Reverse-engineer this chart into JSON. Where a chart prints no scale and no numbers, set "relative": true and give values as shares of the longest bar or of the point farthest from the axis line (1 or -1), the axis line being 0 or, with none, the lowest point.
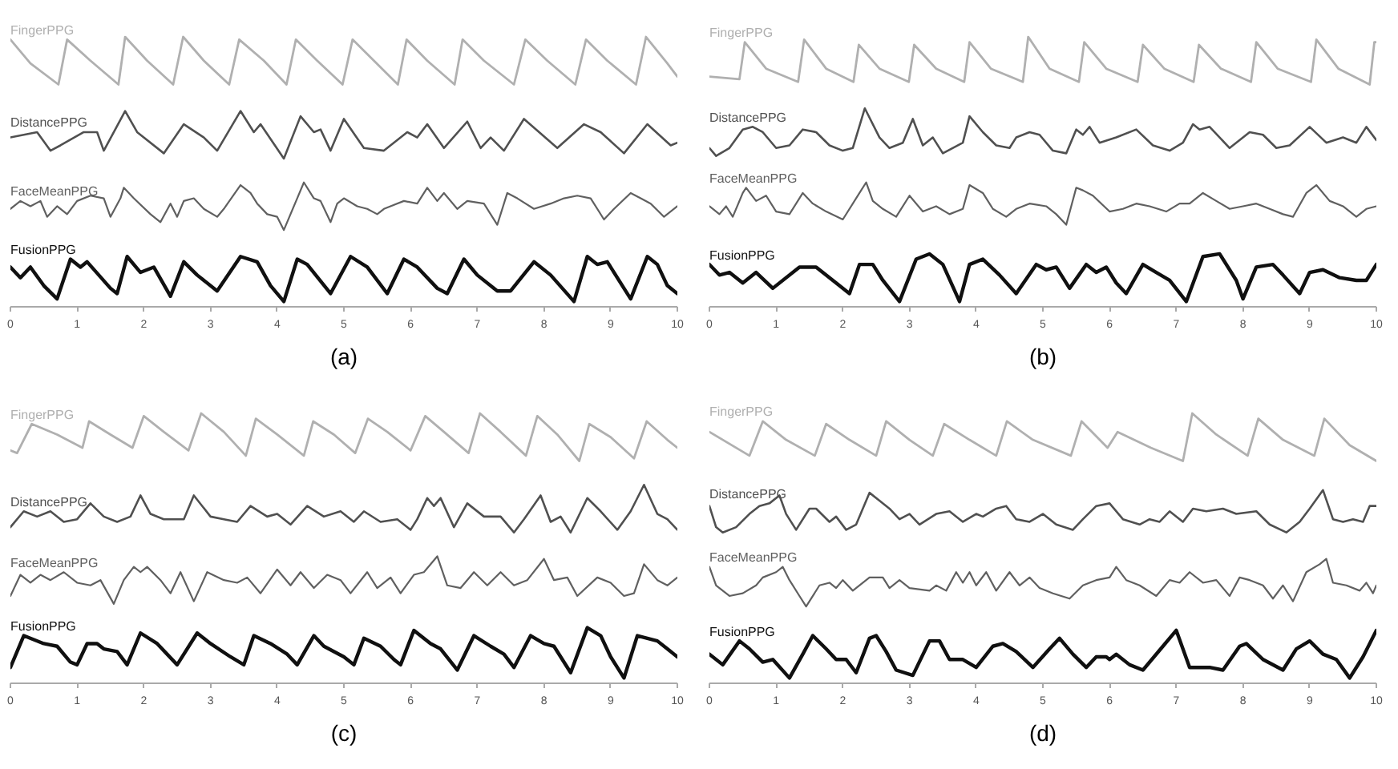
{
  "chart_data": [
    {
      "type": "line",
      "relative": true,
      "title": "(a)",
      "xlim": [
        0,
        10
      ],
      "xticks": [
        0,
        1,
        2,
        3,
        4,
        5,
        6,
        7,
        8,
        9,
        10
      ],
      "series": [
        {
          "name": "FingerPPG",
          "color": "#b0b0b0",
          "x": [
            0,
            0.3,
            0.72,
            0.85,
            1.2,
            1.62,
            1.72,
            2.05,
            2.44,
            2.59,
            2.9,
            3.28,
            3.43,
            3.8,
            4.14,
            4.28,
            4.6,
            4.98,
            5.13,
            5.45,
            5.81,
            5.94,
            6.25,
            6.66,
            6.78,
            7.1,
            7.55,
            7.72,
            8.05,
            8.47,
            8.63,
            8.95,
            9.38,
            9.53,
            9.85,
            10
          ],
          "values": [
            0.99,
            0.9,
            0.82,
            0.99,
            0.91,
            0.82,
            1.0,
            0.91,
            0.82,
            1.0,
            0.91,
            0.82,
            0.99,
            0.91,
            0.82,
            0.99,
            0.91,
            0.82,
            0.99,
            0.91,
            0.82,
            0.99,
            0.91,
            0.82,
            0.99,
            0.91,
            0.82,
            0.99,
            0.91,
            0.82,
            0.99,
            0.91,
            0.82,
            1.0,
            0.9,
            0.85
          ]
        },
        {
          "name": "DistancePPG",
          "color": "#505050",
          "x": [
            0,
            0.4,
            0.6,
            0.75,
            1.1,
            1.3,
            1.4,
            1.72,
            1.9,
            2.3,
            2.6,
            2.9,
            3.1,
            3.45,
            3.65,
            3.75,
            4.1,
            4.35,
            4.55,
            4.65,
            4.8,
            5.0,
            5.3,
            5.6,
            5.95,
            6.1,
            6.25,
            6.5,
            6.85,
            7.05,
            7.2,
            7.4,
            7.7,
            8.2,
            8.6,
            8.85,
            9.2,
            9.55,
            9.9,
            10
          ],
          "values": [
            0.62,
            0.64,
            0.57,
            0.59,
            0.64,
            0.64,
            0.57,
            0.72,
            0.64,
            0.56,
            0.67,
            0.62,
            0.57,
            0.72,
            0.64,
            0.67,
            0.54,
            0.7,
            0.64,
            0.65,
            0.57,
            0.69,
            0.58,
            0.57,
            0.64,
            0.62,
            0.67,
            0.58,
            0.68,
            0.58,
            0.62,
            0.57,
            0.69,
            0.58,
            0.67,
            0.64,
            0.56,
            0.67,
            0.59,
            0.6
          ]
        },
        {
          "name": "FaceMeanPPG",
          "color": "#606060",
          "x": [
            0,
            0.15,
            0.3,
            0.45,
            0.55,
            0.7,
            0.85,
            1.0,
            1.2,
            1.4,
            1.5,
            1.65,
            1.7,
            1.85,
            2.1,
            2.25,
            2.4,
            2.5,
            2.6,
            2.75,
            2.9,
            3.1,
            3.2,
            3.45,
            3.6,
            3.7,
            3.85,
            4.0,
            4.1,
            4.3,
            4.4,
            4.55,
            4.65,
            4.8,
            4.9,
            5.0,
            5.2,
            5.35,
            5.5,
            5.6,
            5.9,
            6.1,
            6.25,
            6.4,
            6.5,
            6.7,
            6.85,
            7.1,
            7.3,
            7.45,
            7.6,
            7.85,
            8.1,
            8.3,
            8.5,
            8.7,
            8.9,
            9.05,
            9.3,
            9.45,
            9.6,
            9.8,
            10
          ],
          "values": [
            0.35,
            0.38,
            0.36,
            0.38,
            0.32,
            0.36,
            0.33,
            0.38,
            0.4,
            0.39,
            0.32,
            0.39,
            0.43,
            0.39,
            0.33,
            0.3,
            0.37,
            0.32,
            0.38,
            0.39,
            0.35,
            0.32,
            0.35,
            0.44,
            0.41,
            0.37,
            0.33,
            0.32,
            0.27,
            0.39,
            0.45,
            0.39,
            0.38,
            0.3,
            0.37,
            0.39,
            0.36,
            0.35,
            0.33,
            0.35,
            0.38,
            0.37,
            0.43,
            0.38,
            0.41,
            0.35,
            0.38,
            0.37,
            0.29,
            0.41,
            0.39,
            0.35,
            0.37,
            0.39,
            0.4,
            0.39,
            0.31,
            0.35,
            0.41,
            0.39,
            0.37,
            0.32,
            0.36
          ]
        },
        {
          "name": "FusionPPG",
          "color": "#101010",
          "x": [
            0,
            0.15,
            0.3,
            0.5,
            0.7,
            0.9,
            1.05,
            1.15,
            1.5,
            1.6,
            1.75,
            1.95,
            2.15,
            2.4,
            2.6,
            2.8,
            3.1,
            3.45,
            3.7,
            3.9,
            4.1,
            4.3,
            4.45,
            4.8,
            5.1,
            5.35,
            5.65,
            5.9,
            6.1,
            6.4,
            6.55,
            6.8,
            7.0,
            7.3,
            7.5,
            7.85,
            8.1,
            8.45,
            8.65,
            8.8,
            8.95,
            9.3,
            9.55,
            9.7,
            9.85,
            10
          ],
          "values": [
            0.13,
            0.09,
            0.13,
            0.06,
            0.01,
            0.16,
            0.13,
            0.15,
            0.05,
            0.03,
            0.17,
            0.11,
            0.13,
            0.02,
            0.15,
            0.1,
            0.04,
            0.17,
            0.15,
            0.06,
            0,
            0.16,
            0.14,
            0.03,
            0.17,
            0.13,
            0.03,
            0.16,
            0.13,
            0.05,
            0.03,
            0.16,
            0.1,
            0.04,
            0.04,
            0.15,
            0.1,
            0,
            0.17,
            0.14,
            0.15,
            0.01,
            0.17,
            0.14,
            0.06,
            0.03
          ]
        }
      ]
    },
    {
      "type": "line",
      "relative": true,
      "title": "(b)",
      "xlim": [
        0,
        10
      ],
      "xticks": [
        0,
        1,
        2,
        3,
        4,
        5,
        6,
        7,
        8,
        9,
        10
      ],
      "series": [
        {
          "name": "FingerPPG",
          "color": "#b0b0b0",
          "x": [
            0,
            0.45,
            0.53,
            0.85,
            1.33,
            1.42,
            1.75,
            2.16,
            2.24,
            2.55,
            2.99,
            3.07,
            3.4,
            3.82,
            3.9,
            4.22,
            4.7,
            4.78,
            5.1,
            5.54,
            5.62,
            5.95,
            6.42,
            6.5,
            6.82,
            7.26,
            7.34,
            7.67,
            8.12,
            8.2,
            8.52,
            9.02,
            9.1,
            9.43,
            9.9,
            9.97,
            10
          ],
          "values": [
            0.85,
            0.84,
            0.98,
            0.88,
            0.83,
            0.99,
            0.88,
            0.83,
            0.97,
            0.88,
            0.83,
            0.97,
            0.88,
            0.83,
            0.98,
            0.88,
            0.83,
            1.0,
            0.88,
            0.83,
            0.98,
            0.88,
            0.83,
            0.97,
            0.88,
            0.83,
            0.97,
            0.88,
            0.83,
            0.98,
            0.88,
            0.83,
            0.99,
            0.88,
            0.82,
            0.98,
            0.98
          ]
        },
        {
          "name": "DistancePPG",
          "color": "#505050",
          "x": [
            0,
            0.1,
            0.3,
            0.5,
            0.65,
            0.8,
            1.0,
            1.2,
            1.4,
            1.6,
            1.8,
            2.0,
            2.15,
            2.33,
            2.55,
            2.7,
            2.9,
            3.05,
            3.2,
            3.35,
            3.5,
            3.8,
            3.9,
            4.1,
            4.3,
            4.5,
            4.6,
            4.8,
            4.95,
            5.15,
            5.35,
            5.5,
            5.6,
            5.7,
            5.85,
            6.1,
            6.4,
            6.65,
            6.9,
            7.1,
            7.25,
            7.35,
            7.5,
            7.8,
            8.1,
            8.3,
            8.5,
            8.7,
            9.0,
            9.25,
            9.5,
            9.7,
            9.85,
            10
          ],
          "values": [
            0.58,
            0.55,
            0.58,
            0.65,
            0.66,
            0.64,
            0.58,
            0.59,
            0.65,
            0.64,
            0.59,
            0.57,
            0.58,
            0.73,
            0.62,
            0.58,
            0.6,
            0.69,
            0.59,
            0.62,
            0.56,
            0.6,
            0.7,
            0.64,
            0.59,
            0.58,
            0.62,
            0.64,
            0.63,
            0.57,
            0.56,
            0.65,
            0.63,
            0.66,
            0.6,
            0.62,
            0.65,
            0.59,
            0.57,
            0.6,
            0.67,
            0.65,
            0.66,
            0.58,
            0.64,
            0.63,
            0.58,
            0.59,
            0.66,
            0.6,
            0.62,
            0.6,
            0.66,
            0.61
          ]
        },
        {
          "name": "FaceMeanPPG",
          "color": "#606060",
          "x": [
            0,
            0.15,
            0.25,
            0.35,
            0.5,
            0.55,
            0.7,
            0.85,
            1.0,
            1.2,
            1.4,
            1.55,
            1.75,
            2.0,
            2.25,
            2.35,
            2.45,
            2.6,
            2.8,
            3.0,
            3.2,
            3.4,
            3.6,
            3.8,
            3.9,
            4.1,
            4.25,
            4.45,
            4.6,
            4.8,
            5.05,
            5.2,
            5.35,
            5.5,
            5.6,
            5.75,
            6.0,
            6.2,
            6.4,
            6.6,
            6.85,
            7.05,
            7.2,
            7.4,
            7.6,
            7.8,
            8.0,
            8.2,
            8.4,
            8.6,
            8.75,
            8.95,
            9.1,
            9.3,
            9.5,
            9.7,
            9.85,
            10
          ],
          "values": [
            0.36,
            0.33,
            0.36,
            0.32,
            0.41,
            0.43,
            0.38,
            0.4,
            0.34,
            0.33,
            0.41,
            0.37,
            0.34,
            0.31,
            0.41,
            0.45,
            0.38,
            0.35,
            0.32,
            0.4,
            0.34,
            0.36,
            0.33,
            0.35,
            0.44,
            0.41,
            0.35,
            0.32,
            0.35,
            0.37,
            0.36,
            0.33,
            0.29,
            0.43,
            0.42,
            0.4,
            0.34,
            0.35,
            0.37,
            0.36,
            0.34,
            0.37,
            0.37,
            0.41,
            0.38,
            0.35,
            0.36,
            0.37,
            0.35,
            0.33,
            0.32,
            0.41,
            0.44,
            0.38,
            0.36,
            0.32,
            0.35,
            0.36
          ]
        },
        {
          "name": "FusionPPG",
          "color": "#101010",
          "x": [
            0,
            0.15,
            0.3,
            0.5,
            0.7,
            0.95,
            1.35,
            1.6,
            1.9,
            2.1,
            2.25,
            2.45,
            2.6,
            2.85,
            3.1,
            3.3,
            3.5,
            3.75,
            3.9,
            4.1,
            4.35,
            4.6,
            4.9,
            5.05,
            5.2,
            5.4,
            5.65,
            5.8,
            5.95,
            6.1,
            6.25,
            6.5,
            6.7,
            6.9,
            7.15,
            7.4,
            7.65,
            7.9,
            8.0,
            8.2,
            8.45,
            8.6,
            8.85,
            9.0,
            9.2,
            9.45,
            9.7,
            9.85,
            10
          ],
          "values": [
            0.14,
            0.1,
            0.11,
            0.07,
            0.11,
            0.05,
            0.13,
            0.13,
            0.07,
            0.03,
            0.14,
            0.14,
            0.08,
            0,
            0.16,
            0.18,
            0.14,
            0,
            0.14,
            0.16,
            0.1,
            0.03,
            0.14,
            0.12,
            0.13,
            0.05,
            0.14,
            0.11,
            0.13,
            0.07,
            0.03,
            0.14,
            0.11,
            0.08,
            0,
            0.17,
            0.18,
            0.08,
            0.01,
            0.13,
            0.14,
            0.1,
            0.03,
            0.11,
            0.12,
            0.09,
            0.08,
            0.08,
            0.14
          ]
        }
      ]
    },
    {
      "type": "line",
      "relative": true,
      "title": "(c)",
      "xlim": [
        0,
        10
      ],
      "xticks": [
        0,
        1,
        2,
        3,
        4,
        5,
        6,
        7,
        8,
        9,
        10
      ],
      "series": [
        {
          "name": "FingerPPG",
          "color": "#b0b0b0",
          "x": [
            0,
            0.1,
            0.32,
            0.7,
            1.08,
            1.18,
            1.5,
            1.83,
            2.0,
            2.3,
            2.67,
            2.86,
            3.2,
            3.53,
            3.68,
            4.0,
            4.4,
            4.54,
            4.85,
            5.17,
            5.36,
            5.65,
            6.0,
            6.22,
            6.5,
            6.87,
            7.04,
            7.35,
            7.73,
            7.9,
            8.2,
            8.53,
            8.68,
            9.0,
            9.35,
            9.54,
            9.85,
            10
          ],
          "values": [
            0.86,
            0.85,
            0.96,
            0.92,
            0.87,
            0.97,
            0.92,
            0.87,
            0.99,
            0.93,
            0.86,
            1.0,
            0.93,
            0.84,
            0.98,
            0.92,
            0.84,
            0.97,
            0.92,
            0.85,
            0.98,
            0.93,
            0.86,
            0.99,
            0.93,
            0.85,
            1.0,
            0.93,
            0.84,
            0.99,
            0.92,
            0.82,
            0.96,
            0.91,
            0.83,
            0.97,
            0.9,
            0.87
          ]
        },
        {
          "name": "DistancePPG",
          "color": "#505050",
          "x": [
            0,
            0.2,
            0.4,
            0.6,
            0.8,
            1.0,
            1.2,
            1.4,
            1.6,
            1.8,
            1.95,
            2.1,
            2.3,
            2.6,
            2.75,
            3.0,
            3.2,
            3.4,
            3.6,
            3.85,
            4.0,
            4.2,
            4.45,
            4.7,
            4.95,
            5.15,
            5.3,
            5.55,
            5.8,
            6.0,
            6.1,
            6.25,
            6.35,
            6.45,
            6.65,
            6.85,
            7.1,
            7.35,
            7.55,
            7.7,
            7.95,
            8.1,
            8.25,
            8.4,
            8.65,
            8.85,
            9.1,
            9.3,
            9.5,
            9.7,
            9.85,
            10
          ],
          "values": [
            0.57,
            0.63,
            0.61,
            0.63,
            0.59,
            0.6,
            0.66,
            0.61,
            0.59,
            0.61,
            0.69,
            0.62,
            0.6,
            0.6,
            0.69,
            0.61,
            0.6,
            0.59,
            0.65,
            0.61,
            0.62,
            0.58,
            0.65,
            0.61,
            0.63,
            0.59,
            0.63,
            0.59,
            0.6,
            0.56,
            0.6,
            0.68,
            0.65,
            0.68,
            0.57,
            0.66,
            0.61,
            0.61,
            0.55,
            0.6,
            0.69,
            0.59,
            0.61,
            0.55,
            0.68,
            0.63,
            0.56,
            0.63,
            0.73,
            0.62,
            0.6,
            0.56
          ]
        },
        {
          "name": "FaceMeanPPG",
          "color": "#606060",
          "x": [
            0,
            0.15,
            0.3,
            0.45,
            0.6,
            0.8,
            1.0,
            1.2,
            1.35,
            1.55,
            1.7,
            1.85,
            1.95,
            2.05,
            2.25,
            2.4,
            2.55,
            2.75,
            2.95,
            3.2,
            3.4,
            3.55,
            3.75,
            4.0,
            4.2,
            4.35,
            4.55,
            4.75,
            4.95,
            5.1,
            5.35,
            5.5,
            5.7,
            5.85,
            6.05,
            6.2,
            6.4,
            6.55,
            6.75,
            6.95,
            7.15,
            7.35,
            7.55,
            7.75,
            8.0,
            8.15,
            8.35,
            8.5,
            8.8,
            9.0,
            9.2,
            9.35,
            9.5,
            9.7,
            9.85,
            10
          ],
          "values": [
            0.31,
            0.39,
            0.36,
            0.39,
            0.37,
            0.4,
            0.36,
            0.35,
            0.37,
            0.28,
            0.37,
            0.42,
            0.4,
            0.42,
            0.37,
            0.32,
            0.4,
            0.29,
            0.4,
            0.37,
            0.36,
            0.38,
            0.32,
            0.41,
            0.35,
            0.4,
            0.34,
            0.39,
            0.37,
            0.32,
            0.4,
            0.34,
            0.38,
            0.32,
            0.39,
            0.4,
            0.46,
            0.35,
            0.34,
            0.4,
            0.35,
            0.4,
            0.35,
            0.37,
            0.45,
            0.37,
            0.38,
            0.31,
            0.38,
            0.36,
            0.31,
            0.32,
            0.43,
            0.37,
            0.35,
            0.38
          ]
        },
        {
          "name": "FusionPPG",
          "color": "#101010",
          "x": [
            0,
            0.2,
            0.5,
            0.7,
            0.9,
            1.0,
            1.15,
            1.3,
            1.4,
            1.6,
            1.75,
            1.95,
            2.2,
            2.5,
            2.8,
            3.0,
            3.3,
            3.5,
            3.65,
            3.9,
            4.15,
            4.3,
            4.55,
            4.7,
            5.0,
            5.15,
            5.3,
            5.55,
            5.75,
            5.85,
            6.05,
            6.3,
            6.45,
            6.7,
            6.95,
            7.2,
            7.4,
            7.55,
            7.8,
            8.0,
            8.15,
            8.4,
            8.65,
            8.85,
            9.0,
            9.2,
            9.4,
            9.7,
            9.85,
            10
          ],
          "values": [
            0.04,
            0.16,
            0.13,
            0.12,
            0.06,
            0.05,
            0.13,
            0.13,
            0.11,
            0.1,
            0.05,
            0.17,
            0.13,
            0.05,
            0.17,
            0.13,
            0.08,
            0.05,
            0.16,
            0.13,
            0.09,
            0.05,
            0.16,
            0.12,
            0.08,
            0.05,
            0.15,
            0.12,
            0.07,
            0.05,
            0.18,
            0.13,
            0.11,
            0.03,
            0.16,
            0.12,
            0.09,
            0.04,
            0.16,
            0.13,
            0.12,
            0.02,
            0.19,
            0.16,
            0.08,
            0,
            0.16,
            0.14,
            0.11,
            0.08
          ]
        }
      ]
    },
    {
      "type": "line",
      "relative": true,
      "title": "(d)",
      "xlim": [
        0,
        10
      ],
      "xticks": [
        0,
        1,
        2,
        3,
        4,
        5,
        6,
        7,
        8,
        9,
        10
      ],
      "series": [
        {
          "name": "FingerPPG",
          "color": "#b0b0b0",
          "x": [
            0,
            0.6,
            0.8,
            1.15,
            1.58,
            1.75,
            2.1,
            2.5,
            2.65,
            3.0,
            3.35,
            3.52,
            3.9,
            4.3,
            4.46,
            4.85,
            5.42,
            5.58,
            5.97,
            6.12,
            6.62,
            7.1,
            7.24,
            7.6,
            8.07,
            8.23,
            8.6,
            9.07,
            9.22,
            9.6,
            10
          ],
          "values": [
            0.93,
            0.84,
            0.97,
            0.9,
            0.84,
            0.96,
            0.9,
            0.84,
            0.97,
            0.9,
            0.84,
            0.96,
            0.9,
            0.84,
            0.97,
            0.9,
            0.84,
            0.97,
            0.87,
            0.93,
            0.87,
            0.82,
            1.0,
            0.92,
            0.84,
            0.98,
            0.9,
            0.84,
            0.98,
            0.88,
            0.82
          ]
        },
        {
          "name": "DistancePPG",
          "color": "#505050",
          "x": [
            0,
            0.1,
            0.2,
            0.4,
            0.6,
            0.75,
            0.9,
            1.05,
            1.15,
            1.3,
            1.5,
            1.6,
            1.8,
            1.9,
            2.05,
            2.2,
            2.4,
            2.55,
            2.7,
            2.85,
            3.0,
            3.15,
            3.4,
            3.6,
            3.8,
            4.0,
            4.1,
            4.3,
            4.45,
            4.6,
            4.8,
            5.0,
            5.2,
            5.45,
            5.6,
            5.8,
            6.0,
            6.2,
            6.45,
            6.6,
            6.75,
            6.9,
            7.1,
            7.25,
            7.45,
            7.7,
            7.9,
            8.2,
            8.4,
            8.65,
            8.85,
            9.0,
            9.2,
            9.35,
            9.5,
            9.65,
            9.8,
            9.9,
            10
          ],
          "values": [
            0.65,
            0.57,
            0.55,
            0.57,
            0.62,
            0.65,
            0.66,
            0.69,
            0.62,
            0.56,
            0.64,
            0.64,
            0.59,
            0.61,
            0.56,
            0.58,
            0.7,
            0.67,
            0.64,
            0.6,
            0.62,
            0.58,
            0.62,
            0.63,
            0.59,
            0.62,
            0.61,
            0.64,
            0.65,
            0.6,
            0.59,
            0.62,
            0.58,
            0.56,
            0.6,
            0.65,
            0.66,
            0.6,
            0.58,
            0.6,
            0.59,
            0.63,
            0.59,
            0.64,
            0.63,
            0.64,
            0.62,
            0.63,
            0.58,
            0.55,
            0.59,
            0.64,
            0.71,
            0.6,
            0.59,
            0.6,
            0.59,
            0.65,
            0.65
          ]
        },
        {
          "name": "FaceMeanPPG",
          "color": "#606060",
          "x": [
            0,
            0.1,
            0.3,
            0.5,
            0.7,
            0.8,
            1.0,
            1.1,
            1.2,
            1.35,
            1.45,
            1.65,
            1.8,
            1.9,
            2.0,
            2.15,
            2.4,
            2.6,
            2.7,
            2.85,
            3.0,
            3.3,
            3.4,
            3.55,
            3.7,
            3.8,
            3.9,
            4.0,
            4.15,
            4.3,
            4.5,
            4.65,
            4.8,
            4.95,
            5.15,
            5.4,
            5.6,
            5.8,
            6.0,
            6.1,
            6.25,
            6.45,
            6.7,
            6.9,
            7.05,
            7.2,
            7.4,
            7.6,
            7.8,
            7.95,
            8.1,
            8.3,
            8.45,
            8.6,
            8.75,
            8.95,
            9.15,
            9.25,
            9.35,
            9.55,
            9.75,
            9.85,
            9.95,
            10
          ],
          "values": [
            0.42,
            0.35,
            0.31,
            0.32,
            0.35,
            0.38,
            0.4,
            0.42,
            0.37,
            0.31,
            0.27,
            0.35,
            0.36,
            0.34,
            0.37,
            0.33,
            0.38,
            0.38,
            0.34,
            0.37,
            0.34,
            0.33,
            0.35,
            0.33,
            0.4,
            0.36,
            0.4,
            0.35,
            0.4,
            0.33,
            0.4,
            0.35,
            0.38,
            0.34,
            0.32,
            0.3,
            0.35,
            0.37,
            0.38,
            0.42,
            0.37,
            0.35,
            0.31,
            0.37,
            0.36,
            0.4,
            0.36,
            0.37,
            0.31,
            0.38,
            0.37,
            0.35,
            0.3,
            0.35,
            0.29,
            0.4,
            0.43,
            0.45,
            0.36,
            0.35,
            0.33,
            0.36,
            0.32,
            0.35
          ]
        },
        {
          "name": "FusionPPG",
          "color": "#101010",
          "x": [
            0,
            0.2,
            0.45,
            0.6,
            0.8,
            0.95,
            1.2,
            1.4,
            1.55,
            1.75,
            1.9,
            2.05,
            2.2,
            2.4,
            2.5,
            2.65,
            2.8,
            3.05,
            3.3,
            3.45,
            3.6,
            3.8,
            4.0,
            4.25,
            4.4,
            4.6,
            4.85,
            5.1,
            5.25,
            5.45,
            5.65,
            5.8,
            5.95,
            6.0,
            6.1,
            6.3,
            6.5,
            6.8,
            7.0,
            7.2,
            7.5,
            7.7,
            7.95,
            8.05,
            8.3,
            8.6,
            8.8,
            9.0,
            9.2,
            9.4,
            9.6,
            9.8,
            10
          ],
          "values": [
            0.09,
            0.05,
            0.14,
            0.11,
            0.06,
            0.07,
            0,
            0.09,
            0.16,
            0.11,
            0.07,
            0.07,
            0.02,
            0.15,
            0.16,
            0.1,
            0.03,
            0.01,
            0.14,
            0.14,
            0.07,
            0.07,
            0.04,
            0.12,
            0.13,
            0.1,
            0.04,
            0.11,
            0.15,
            0.09,
            0.04,
            0.08,
            0.08,
            0.07,
            0.09,
            0.05,
            0.03,
            0.12,
            0.18,
            0.04,
            0.04,
            0.03,
            0.12,
            0.13,
            0.07,
            0.03,
            0.11,
            0.14,
            0.09,
            0.07,
            0,
            0.08,
            0.18
          ]
        }
      ]
    }
  ]
}
